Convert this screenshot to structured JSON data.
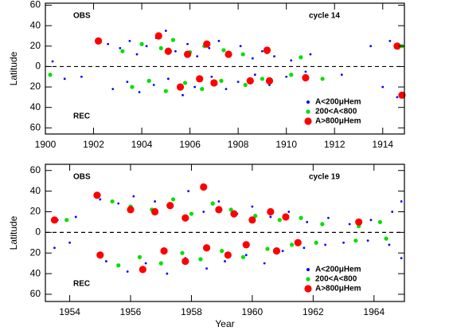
{
  "chart_data": [
    {
      "type": "scatter",
      "title": "cycle 14",
      "ylabel": "Latitude",
      "annotations": [
        "OBS",
        "REC"
      ],
      "xlim": [
        1900,
        1914.9
      ],
      "xticks": [
        1900,
        1902,
        1904,
        1906,
        1908,
        1910,
        1912,
        1914
      ],
      "ylim": [
        -66,
        62
      ],
      "yticks": [
        {
          "value": -60,
          "label": "60"
        },
        {
          "value": -40,
          "label": "40"
        },
        {
          "value": -20,
          "label": "20"
        },
        0,
        20,
        40,
        60
      ],
      "legend": "lower right",
      "series": [
        {
          "name": "A<200μHem",
          "color": "#0000ff",
          "x": [
            1902.6,
            1903.1,
            1903.5,
            1903.8,
            1904.2,
            1904.6,
            1905.0,
            1905.4,
            1905.9,
            1906.3,
            1906.8,
            1907.2,
            1907.7,
            1908.1,
            1908.6,
            1909.0,
            1909.5,
            1910.2,
            1911.0,
            1913.5,
            1914.3,
            1900.3,
            1901.5,
            1902.8,
            1903.4,
            1903.9,
            1904.5,
            1905.1,
            1905.7,
            1906.2,
            1906.9,
            1907.5,
            1908.0,
            1908.7,
            1909.3,
            1910.0,
            1910.8,
            1912.3,
            1914.0,
            1914.6,
            1900.8
          ],
          "values": [
            22,
            18,
            25,
            12,
            20,
            28,
            35,
            15,
            22,
            10,
            18,
            25,
            12,
            20,
            8,
            15,
            10,
            6,
            12,
            20,
            25,
            5,
            -10,
            -22,
            -15,
            -25,
            -18,
            -12,
            -28,
            -20,
            -10,
            -22,
            -15,
            -8,
            -18,
            -10,
            -5,
            -8,
            -20,
            -30,
            -12
          ]
        },
        {
          "name": "200<A<800",
          "color": "#00e000",
          "x": [
            1903.2,
            1904.0,
            1904.8,
            1905.3,
            1906.0,
            1906.6,
            1907.4,
            1908.2,
            1909.2,
            1910.6,
            1900.2,
            1903.6,
            1904.3,
            1905.0,
            1905.8,
            1906.5,
            1907.3,
            1908.3,
            1909.0,
            1910.2,
            1911.5,
            1914.8
          ],
          "values": [
            15,
            22,
            18,
            26,
            14,
            20,
            16,
            12,
            14,
            9,
            -8,
            -20,
            -14,
            -24,
            -16,
            -22,
            -14,
            -18,
            -12,
            -8,
            -12,
            20
          ]
        },
        {
          "name": "A>800μHem",
          "color": "#ff0000",
          "x": [
            1902.2,
            1904.7,
            1905.1,
            1905.9,
            1906.7,
            1907.6,
            1909.2,
            1905.6,
            1906.4,
            1907.0,
            1908.5,
            1909.3,
            1910.8,
            1914.6,
            1914.8
          ],
          "values": [
            25,
            30,
            15,
            12,
            22,
            12,
            16,
            -20,
            -12,
            -16,
            -14,
            -14,
            -11,
            20,
            -28
          ]
        }
      ]
    },
    {
      "type": "scatter",
      "title": "cycle 19",
      "ylabel": "Latitude",
      "xlabel": "Year",
      "annotations": [
        "OBS",
        "REC"
      ],
      "xlim": [
        1953.2,
        1965
      ],
      "xticks": [
        1954,
        1956,
        1958,
        1960,
        1962,
        1964
      ],
      "ylim": [
        -67,
        66
      ],
      "yticks": [
        {
          "value": -60,
          "label": "60"
        },
        {
          "value": -40,
          "label": "40"
        },
        {
          "value": -20,
          "label": "20"
        },
        0,
        20,
        40,
        60
      ],
      "legend": "lower right",
      "series": [
        {
          "name": "A<200μHem",
          "color": "#0000ff",
          "x": [
            1953.6,
            1954.2,
            1955.0,
            1955.6,
            1956.1,
            1956.8,
            1957.3,
            1957.9,
            1958.4,
            1958.9,
            1959.5,
            1960.0,
            1960.6,
            1961.2,
            1961.8,
            1962.5,
            1963.2,
            1963.9,
            1964.6,
            1964.9,
            1953.5,
            1954.0,
            1955.2,
            1955.9,
            1956.5,
            1957.2,
            1957.8,
            1958.5,
            1959.1,
            1959.8,
            1960.4,
            1961.0,
            1961.7,
            1962.4,
            1963.0,
            1963.8,
            1964.5,
            1964.9
          ],
          "values": [
            12,
            15,
            32,
            28,
            35,
            30,
            25,
            40,
            20,
            30,
            18,
            25,
            15,
            20,
            10,
            14,
            8,
            12,
            20,
            30,
            -15,
            -10,
            -28,
            -38,
            -30,
            -40,
            -25,
            -35,
            -28,
            -22,
            -30,
            -18,
            -15,
            -12,
            -10,
            -8,
            -12,
            -25
          ]
        },
        {
          "name": "200<A<800",
          "color": "#00e000",
          "x": [
            1955.4,
            1956.0,
            1956.7,
            1957.4,
            1958.0,
            1958.7,
            1959.3,
            1960.1,
            1960.9,
            1961.6,
            1962.3,
            1963.5,
            1964.2,
            1953.9,
            1955.6,
            1956.3,
            1957.0,
            1957.7,
            1958.3,
            1959.0,
            1959.7,
            1960.5,
            1961.3,
            1962.1,
            1963.4,
            1964.4
          ],
          "values": [
            30,
            25,
            22,
            32,
            18,
            28,
            22,
            16,
            12,
            14,
            8,
            6,
            10,
            12,
            -32,
            -24,
            -30,
            -20,
            -26,
            -18,
            -24,
            -16,
            -12,
            -10,
            -8,
            -6
          ]
        },
        {
          "name": "A>800μHem",
          "color": "#ff0000",
          "x": [
            1954.9,
            1956.0,
            1956.8,
            1957.3,
            1957.8,
            1958.4,
            1958.9,
            1959.4,
            1960.0,
            1960.6,
            1961.1,
            1963.5,
            1953.5,
            1955.0,
            1956.4,
            1957.1,
            1957.8,
            1958.5,
            1959.2,
            1959.8,
            1960.8,
            1961.5
          ],
          "values": [
            36,
            22,
            20,
            26,
            14,
            44,
            22,
            18,
            12,
            20,
            15,
            10,
            12,
            -22,
            -36,
            -18,
            -28,
            -15,
            -22,
            -12,
            -18,
            -10
          ]
        }
      ]
    }
  ]
}
